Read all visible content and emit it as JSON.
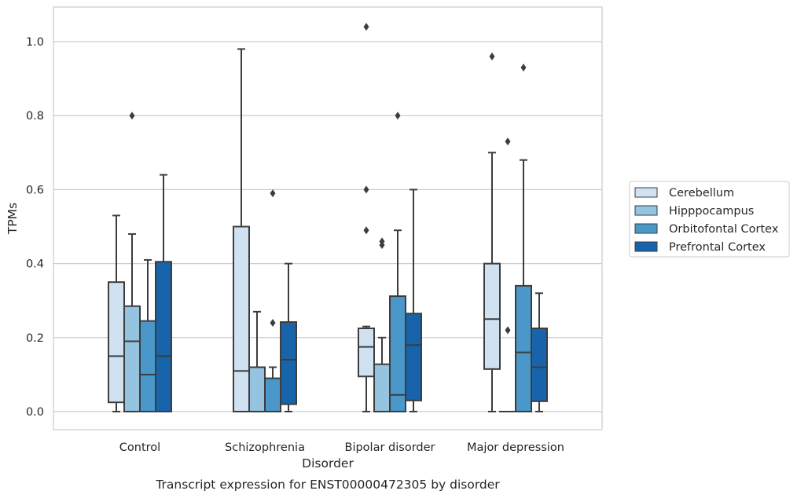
{
  "chart_data": {
    "type": "box",
    "caption": "Transcript expression for ENST00000472305 by disorder",
    "xlabel": "Disorder",
    "ylabel": "TPMs",
    "ylim": [
      -0.05,
      1.09
    ],
    "yticks": [
      "0.0",
      "0.2",
      "0.4",
      "0.6",
      "0.8",
      "1.0"
    ],
    "ytick_values": [
      0.0,
      0.2,
      0.4,
      0.6,
      0.8,
      1.0
    ],
    "grid": true,
    "legend_position": "right",
    "categories": [
      "Control",
      "Schizophrenia",
      "Bipolar disorder",
      "Major depression"
    ],
    "series": [
      {
        "name": "Cerebellum",
        "color": "#d0e1f2",
        "boxes": [
          {
            "whisker_low": 0.0,
            "q1": 0.025,
            "median": 0.15,
            "q3": 0.35,
            "whisker_high": 0.53,
            "outliers": []
          },
          {
            "whisker_low": 0.0,
            "q1": 0.0,
            "median": 0.11,
            "q3": 0.5,
            "whisker_high": 0.98,
            "outliers": []
          },
          {
            "whisker_low": 0.0,
            "q1": 0.095,
            "median": 0.175,
            "q3": 0.225,
            "whisker_high": 0.23,
            "outliers": [
              0.49,
              0.6,
              1.04
            ]
          },
          {
            "whisker_low": 0.0,
            "q1": 0.115,
            "median": 0.25,
            "q3": 0.4,
            "whisker_high": 0.7,
            "outliers": [
              0.96
            ]
          }
        ]
      },
      {
        "name": "Hipppocampus",
        "color": "#94c4df",
        "boxes": [
          {
            "whisker_low": 0.0,
            "q1": 0.0,
            "median": 0.19,
            "q3": 0.285,
            "whisker_high": 0.48,
            "outliers": [
              0.8
            ]
          },
          {
            "whisker_low": 0.0,
            "q1": 0.0,
            "median": 0.12,
            "q3": 0.12,
            "whisker_high": 0.27,
            "outliers": []
          },
          {
            "whisker_low": 0.0,
            "q1": 0.0,
            "median": 0.0,
            "q3": 0.128,
            "whisker_high": 0.2,
            "outliers": [
              0.45,
              0.46
            ]
          },
          {
            "whisker_low": 0.0,
            "q1": 0.0,
            "median": 0.0,
            "q3": 0.0,
            "whisker_high": 0.0,
            "outliers": [
              0.22,
              0.73
            ]
          }
        ]
      },
      {
        "name": "Orbitofontal Cortex",
        "color": "#4a98c9",
        "boxes": [
          {
            "whisker_low": 0.0,
            "q1": 0.0,
            "median": 0.1,
            "q3": 0.245,
            "whisker_high": 0.41,
            "outliers": []
          },
          {
            "whisker_low": 0.0,
            "q1": 0.0,
            "median": 0.0,
            "q3": 0.09,
            "whisker_high": 0.12,
            "outliers": [
              0.24,
              0.59
            ]
          },
          {
            "whisker_low": 0.0,
            "q1": 0.0,
            "median": 0.045,
            "q3": 0.312,
            "whisker_high": 0.49,
            "outliers": [
              0.8
            ]
          },
          {
            "whisker_low": 0.0,
            "q1": 0.0,
            "median": 0.16,
            "q3": 0.34,
            "whisker_high": 0.68,
            "outliers": [
              0.93
            ]
          }
        ]
      },
      {
        "name": "Prefrontal Cortex",
        "color": "#1764ab",
        "boxes": [
          {
            "whisker_low": 0.0,
            "q1": 0.0,
            "median": 0.15,
            "q3": 0.405,
            "whisker_high": 0.64,
            "outliers": []
          },
          {
            "whisker_low": 0.0,
            "q1": 0.02,
            "median": 0.14,
            "q3": 0.242,
            "whisker_high": 0.4,
            "outliers": []
          },
          {
            "whisker_low": 0.0,
            "q1": 0.03,
            "median": 0.18,
            "q3": 0.265,
            "whisker_high": 0.6,
            "outliers": []
          },
          {
            "whisker_low": 0.0,
            "q1": 0.028,
            "median": 0.12,
            "q3": 0.225,
            "whisker_high": 0.32,
            "outliers": []
          }
        ]
      }
    ]
  }
}
